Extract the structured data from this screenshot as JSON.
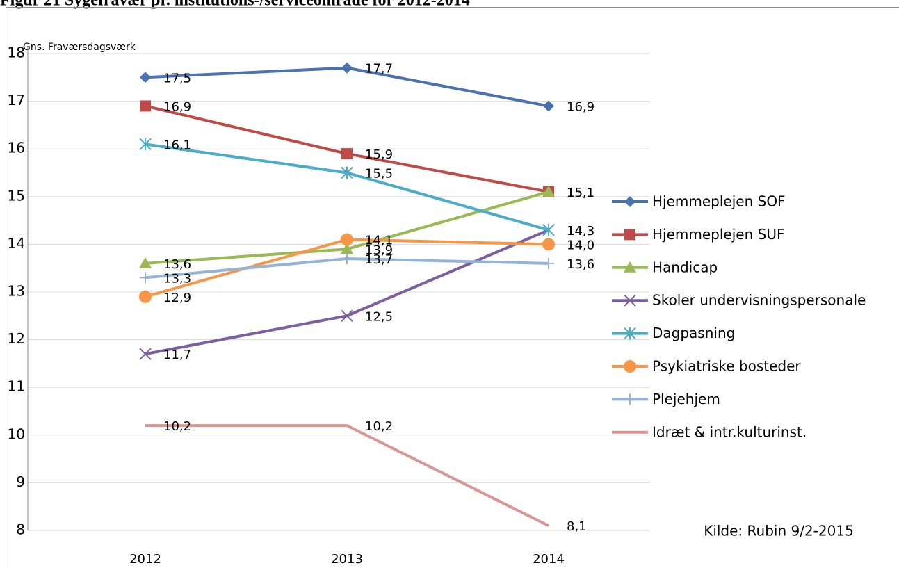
{
  "chart_data": {
    "type": "line",
    "title": "Figur 21      Sygefravær pr. institutions-/serviceområde for 2012-2014",
    "y_label": "Gns. Fraværsdagsværk",
    "source": "Kilde: Rubin 9/2-2015",
    "categories": [
      "2012",
      "2013",
      "2014"
    ],
    "ylim": [
      8,
      18
    ],
    "yticks": [
      8,
      9,
      10,
      11,
      12,
      13,
      14,
      15,
      16,
      17,
      18
    ],
    "grid": true,
    "legend": "right",
    "series": [
      {
        "name": "Hjemmeplejen SOF",
        "color": "#4a72b0",
        "marker": "diamond",
        "values": [
          17.5,
          17.7,
          16.9
        ],
        "value_labels": [
          "17,5",
          "17,7",
          "16,9"
        ]
      },
      {
        "name": "Hjemmeplejen SUF",
        "color": "#be4b48",
        "marker": "square",
        "values": [
          16.9,
          15.9,
          15.1
        ],
        "value_labels": [
          "16,9",
          "15,9",
          "15,1"
        ]
      },
      {
        "name": "Handicap",
        "color": "#98b954",
        "marker": "triangle",
        "values": [
          13.6,
          13.9,
          15.1
        ],
        "value_labels": [
          "13,6",
          "13,9",
          "15,1"
        ]
      },
      {
        "name": "Skoler undervisningspersonale",
        "color": "#7d5fa0",
        "marker": "x",
        "values": [
          11.7,
          12.5,
          14.3
        ],
        "value_labels": [
          "11,7",
          "12,5",
          "14,3"
        ]
      },
      {
        "name": "Dagpasning",
        "color": "#4bacc6",
        "marker": "asterisk",
        "values": [
          16.1,
          15.5,
          14.3
        ],
        "value_labels": [
          "16,1",
          "15,5",
          "14,3"
        ]
      },
      {
        "name": "Psykiatriske bosteder",
        "color": "#f79646",
        "marker": "circle",
        "values": [
          12.9,
          14.1,
          14.0
        ],
        "value_labels": [
          "12,9",
          "14,1",
          "14,0"
        ]
      },
      {
        "name": "Plejehjem",
        "color": "#95b3d7",
        "marker": "plus",
        "values": [
          13.3,
          13.7,
          13.6
        ],
        "value_labels": [
          "13,3",
          "13,7",
          "13,6"
        ]
      },
      {
        "name": "Idræt & intr.kulturinst.",
        "color": "#d99694",
        "marker": "none",
        "values": [
          10.2,
          10.2,
          8.1
        ],
        "value_labels": [
          "10,2",
          "10,2",
          "8,1"
        ]
      }
    ]
  }
}
